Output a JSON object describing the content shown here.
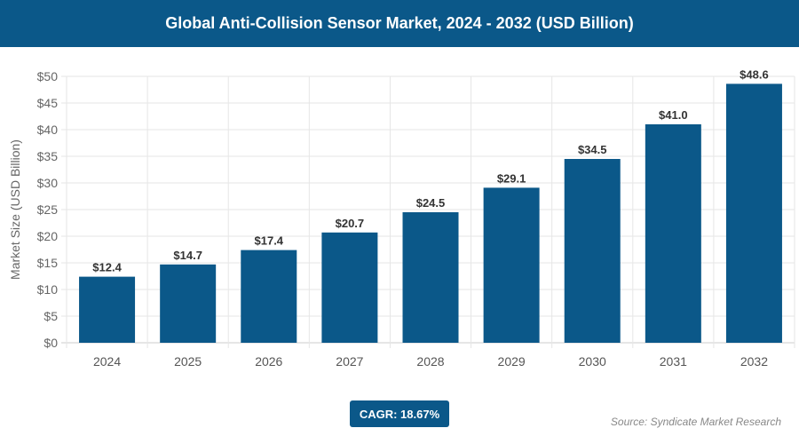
{
  "chart_data": {
    "type": "bar",
    "title": "Global Anti-Collision Sensor Market, 2024 - 2032 (USD Billion)",
    "ylabel": "Market Size (USD Billion)",
    "xlabel": "",
    "categories": [
      "2024",
      "2025",
      "2026",
      "2027",
      "2028",
      "2029",
      "2030",
      "2031",
      "2032"
    ],
    "values": [
      12.4,
      14.7,
      17.4,
      20.7,
      24.5,
      29.1,
      34.5,
      41.0,
      48.6
    ],
    "data_labels": [
      "$12.4",
      "$14.7",
      "$17.4",
      "$20.7",
      "$24.5",
      "$29.1",
      "$34.5",
      "$41.0",
      "$48.6"
    ],
    "ylim": [
      0,
      50
    ],
    "yticks": [
      "$0",
      "$5",
      "$10",
      "$15",
      "$20",
      "$25",
      "$30",
      "$35",
      "$40",
      "$45",
      "$50"
    ],
    "grid": true,
    "bar_color": "#0b5889"
  },
  "cagr": "CAGR: 18.67%",
  "source": "Source: Syndicate Market Research"
}
